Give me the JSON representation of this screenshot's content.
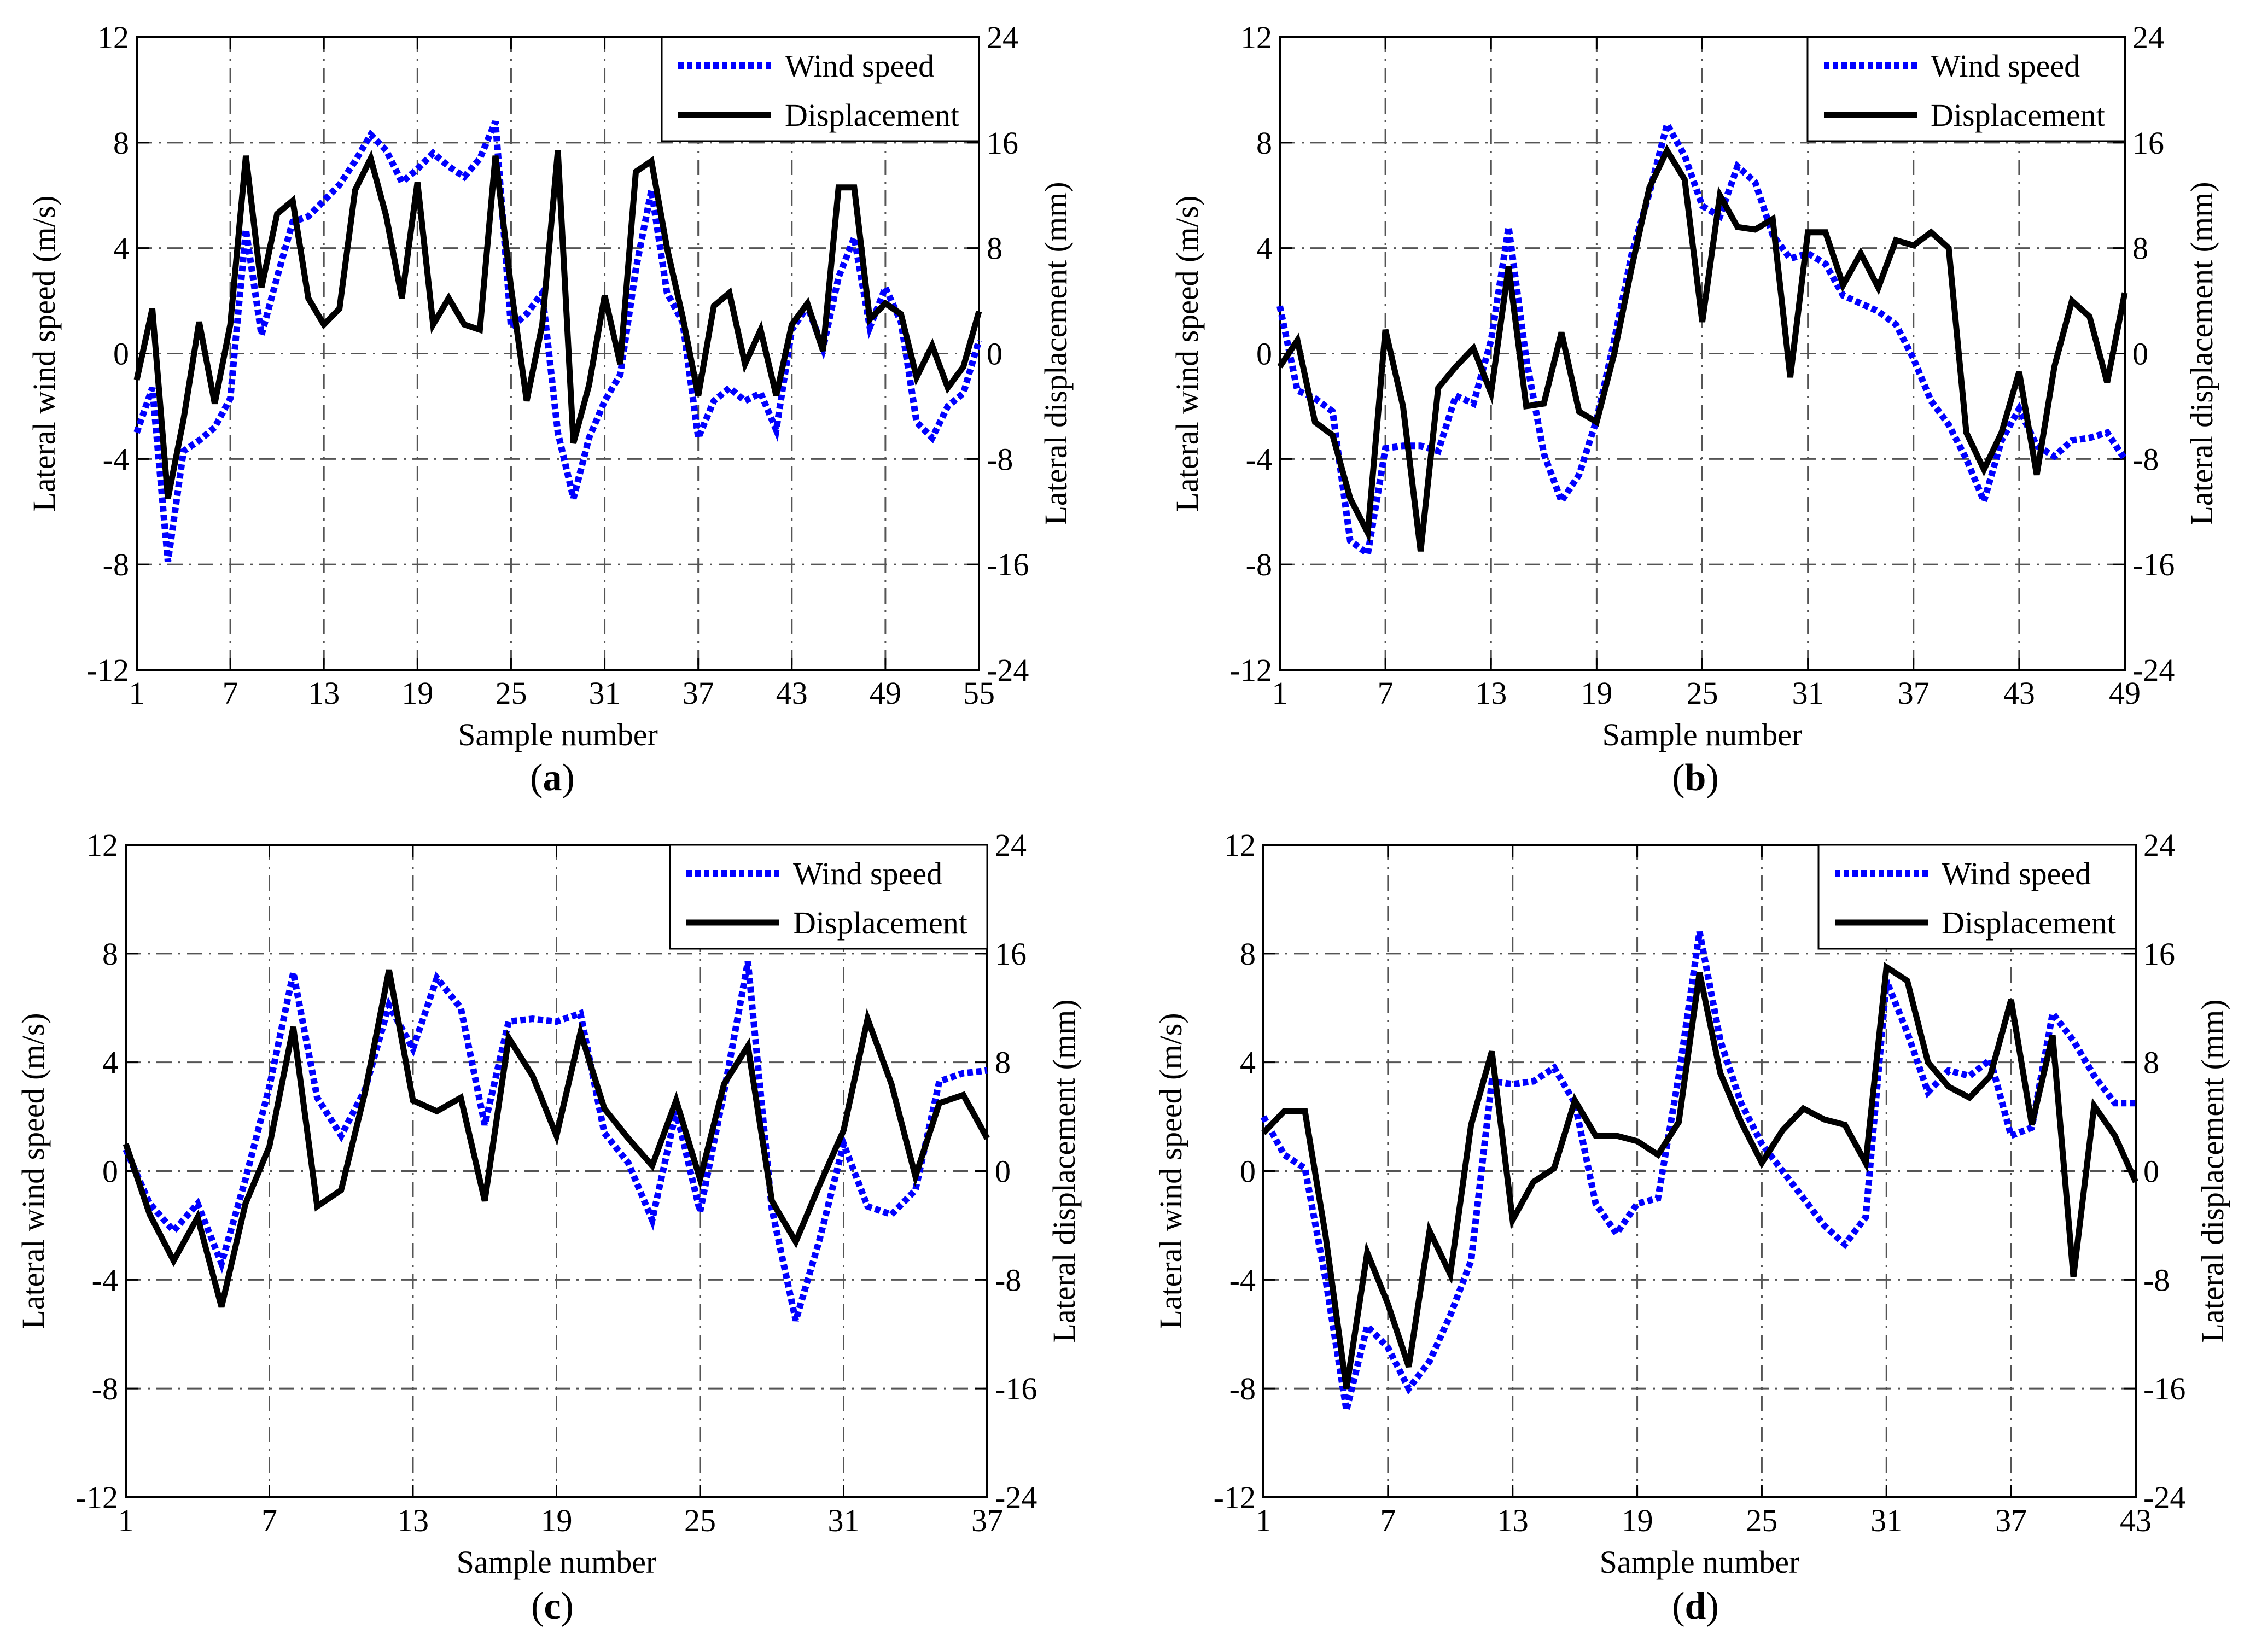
{
  "chart_data": [
    {
      "type": "line",
      "caption": {
        "open": "(",
        "letter": "a",
        "close": ")"
      },
      "xlabel": "Sample number",
      "ylabel": "Lateral wind speed (m/s)",
      "y2label": "Lateral displacement (mm)",
      "xlim": [
        1,
        55
      ],
      "xticks": [
        1,
        7,
        13,
        19,
        25,
        31,
        37,
        43,
        49,
        55
      ],
      "ylim": [
        -12,
        12
      ],
      "yticks": [
        -12,
        -8,
        -4,
        0,
        4,
        8,
        12
      ],
      "y2lim": [
        -24,
        24
      ],
      "y2ticks": [
        -24,
        -16,
        -8,
        0,
        8,
        16,
        24
      ],
      "grid": true,
      "legend_position": "top-right",
      "x": [
        1,
        2,
        3,
        4,
        5,
        6,
        7,
        8,
        9,
        10,
        11,
        12,
        13,
        14,
        15,
        16,
        17,
        18,
        19,
        20,
        21,
        22,
        23,
        24,
        25,
        26,
        27,
        28,
        29,
        30,
        31,
        32,
        33,
        34,
        35,
        36,
        37,
        38,
        39,
        40,
        41,
        42,
        43,
        44,
        45,
        46,
        47,
        48,
        49,
        50,
        51,
        52,
        53,
        54,
        55
      ],
      "series": [
        {
          "name": "Wind speed",
          "axis": "left",
          "color": "#0000ff",
          "style": "dotted",
          "values": [
            -3.0,
            -1.3,
            -7.9,
            -3.7,
            -3.3,
            -2.8,
            -1.7,
            4.7,
            0.7,
            2.9,
            5.0,
            5.2,
            5.8,
            6.4,
            7.3,
            8.3,
            7.7,
            6.5,
            7.0,
            7.6,
            7.1,
            6.7,
            7.4,
            8.8,
            1.0,
            1.5,
            2.3,
            -3.0,
            -5.5,
            -3.2,
            -1.8,
            -0.8,
            3.2,
            6.2,
            2.3,
            1.2,
            -3.2,
            -1.8,
            -1.3,
            -1.8,
            -1.5,
            -2.9,
            0.9,
            1.8,
            0.2,
            2.9,
            4.4,
            1.0,
            2.5,
            1.2,
            -2.6,
            -3.2,
            -2.0,
            -1.5,
            0.5
          ]
        },
        {
          "name": "Displacement",
          "axis": "right",
          "color": "#000000",
          "style": "solid",
          "values": [
            -2.0,
            3.4,
            -11.0,
            -5.0,
            2.4,
            -3.8,
            2.2,
            15.0,
            5.0,
            10.6,
            11.6,
            4.2,
            2.2,
            3.4,
            12.4,
            14.8,
            10.4,
            4.2,
            13.0,
            2.2,
            4.2,
            2.2,
            1.8,
            15.0,
            5.0,
            -3.6,
            2.2,
            15.4,
            -6.8,
            -2.4,
            4.4,
            -0.8,
            13.8,
            14.6,
            8.0,
            2.8,
            -3.2,
            3.6,
            4.6,
            -0.8,
            1.8,
            -3.2,
            2.2,
            3.8,
            0.2,
            12.6,
            12.6,
            2.6,
            3.8,
            3.0,
            -1.8,
            0.6,
            -2.6,
            -1.0,
            3.2
          ]
        }
      ]
    },
    {
      "type": "line",
      "caption": {
        "open": "(",
        "letter": "b",
        "close": ")"
      },
      "xlabel": "Sample number",
      "ylabel": "Lateral wind speed (m/s)",
      "y2label": "Lateral displacement (mm)",
      "xlim": [
        1,
        49
      ],
      "xticks": [
        1,
        7,
        13,
        19,
        25,
        31,
        37,
        43,
        49
      ],
      "ylim": [
        -12,
        12
      ],
      "yticks": [
        -12,
        -8,
        -4,
        0,
        4,
        8,
        12
      ],
      "y2lim": [
        -24,
        24
      ],
      "y2ticks": [
        -24,
        -16,
        -8,
        0,
        8,
        16,
        24
      ],
      "grid": true,
      "legend_position": "top-right",
      "x": [
        1,
        2,
        3,
        4,
        5,
        6,
        7,
        8,
        9,
        10,
        11,
        12,
        13,
        14,
        15,
        16,
        17,
        18,
        19,
        20,
        21,
        22,
        23,
        24,
        25,
        26,
        27,
        28,
        29,
        30,
        31,
        32,
        33,
        34,
        35,
        36,
        37,
        38,
        39,
        40,
        41,
        42,
        43,
        44,
        45,
        46,
        47,
        48,
        49
      ],
      "series": [
        {
          "name": "Wind speed",
          "axis": "left",
          "color": "#0000ff",
          "style": "dotted",
          "values": [
            1.8,
            -1.4,
            -1.7,
            -2.2,
            -7.1,
            -7.6,
            -3.6,
            -3.5,
            -3.5,
            -3.7,
            -1.6,
            -1.9,
            0.5,
            4.8,
            -0.2,
            -3.8,
            -5.6,
            -4.6,
            -2.5,
            0.5,
            3.8,
            6.1,
            8.7,
            7.5,
            5.6,
            5.2,
            7.1,
            6.5,
            4.5,
            3.6,
            3.8,
            3.4,
            2.2,
            1.9,
            1.6,
            1.1,
            -0.2,
            -1.8,
            -2.7,
            -4.0,
            -5.6,
            -3.3,
            -2.1,
            -3.5,
            -3.9,
            -3.3,
            -3.2,
            -3.0,
            -4.0
          ]
        },
        {
          "name": "Displacement",
          "axis": "right",
          "color": "#000000",
          "style": "solid",
          "values": [
            -1.0,
            1.0,
            -5.2,
            -6.2,
            -11.0,
            -13.6,
            1.8,
            -4.0,
            -15.0,
            -2.6,
            -1.0,
            0.4,
            -3.0,
            6.6,
            -4.0,
            -3.8,
            1.6,
            -4.4,
            -5.2,
            0.0,
            6.6,
            12.6,
            15.4,
            13.2,
            2.4,
            12.0,
            9.6,
            9.4,
            10.2,
            -1.8,
            9.2,
            9.2,
            5.2,
            7.6,
            5.0,
            8.6,
            8.2,
            9.2,
            8.0,
            -6.0,
            -8.8,
            -6.0,
            -1.4,
            -9.2,
            -1.0,
            4.0,
            2.8,
            -2.2,
            4.6
          ]
        }
      ]
    },
    {
      "type": "line",
      "caption": {
        "open": "(",
        "letter": "c",
        "close": ")"
      },
      "xlabel": "Sample number",
      "ylabel": "Lateral wind speed (m/s)",
      "y2label": "Lateral displacement (mm)",
      "xlim": [
        1,
        37
      ],
      "xticks": [
        1,
        7,
        13,
        19,
        25,
        31,
        37
      ],
      "ylim": [
        -12,
        12
      ],
      "yticks": [
        -12,
        -8,
        -4,
        0,
        4,
        8,
        12
      ],
      "y2lim": [
        -24,
        24
      ],
      "y2ticks": [
        -24,
        -16,
        -8,
        0,
        8,
        16,
        24
      ],
      "grid": true,
      "legend_position": "top-right",
      "x": [
        1,
        2,
        3,
        4,
        5,
        6,
        7,
        8,
        9,
        10,
        11,
        12,
        13,
        14,
        15,
        16,
        17,
        18,
        19,
        20,
        21,
        22,
        23,
        24,
        25,
        26,
        27,
        28,
        29,
        30,
        31,
        32,
        33,
        34,
        35,
        36,
        37
      ],
      "series": [
        {
          "name": "Wind speed",
          "axis": "left",
          "color": "#0000ff",
          "style": "dotted",
          "values": [
            0.8,
            -1.2,
            -2.2,
            -1.2,
            -3.4,
            -0.3,
            3.1,
            7.3,
            2.7,
            1.3,
            3.0,
            6.1,
            4.5,
            7.1,
            6.0,
            1.7,
            5.5,
            5.6,
            5.5,
            5.8,
            1.4,
            0.3,
            -1.8,
            2.2,
            -1.5,
            2.9,
            7.7,
            -1.4,
            -5.5,
            -2.5,
            1.0,
            -1.3,
            -1.6,
            -0.7,
            3.3,
            3.6,
            3.7
          ]
        },
        {
          "name": "Displacement",
          "axis": "right",
          "color": "#000000",
          "style": "solid",
          "values": [
            2.0,
            -3.2,
            -6.6,
            -3.4,
            -10.0,
            -2.4,
            1.8,
            10.6,
            -2.6,
            -1.4,
            5.8,
            14.8,
            5.2,
            4.4,
            5.4,
            -2.2,
            9.8,
            7.0,
            2.6,
            10.2,
            4.6,
            2.4,
            0.4,
            5.2,
            -0.6,
            6.4,
            9.2,
            -2.2,
            -5.2,
            -1.0,
            3.0,
            11.2,
            6.4,
            -0.4,
            5.0,
            5.6,
            2.4
          ]
        }
      ]
    },
    {
      "type": "line",
      "caption": {
        "open": "(",
        "letter": "d",
        "close": ")"
      },
      "xlabel": "Sample number",
      "ylabel": "Lateral wind speed (m/s)",
      "y2label": "Lateral displacement (mm)",
      "xlim": [
        1,
        43
      ],
      "xticks": [
        1,
        7,
        13,
        19,
        25,
        31,
        37,
        43
      ],
      "ylim": [
        -12,
        12
      ],
      "yticks": [
        -12,
        -8,
        -4,
        0,
        4,
        8,
        12
      ],
      "y2lim": [
        -24,
        24
      ],
      "y2ticks": [
        -24,
        -16,
        -8,
        0,
        8,
        16,
        24
      ],
      "grid": true,
      "legend_position": "top-right",
      "x": [
        1,
        2,
        3,
        4,
        5,
        6,
        7,
        8,
        9,
        10,
        11,
        12,
        13,
        14,
        15,
        16,
        17,
        18,
        19,
        20,
        21,
        22,
        23,
        24,
        25,
        26,
        27,
        28,
        29,
        30,
        31,
        32,
        33,
        34,
        35,
        36,
        37,
        38,
        39,
        40,
        41,
        42,
        43
      ],
      "series": [
        {
          "name": "Wind speed",
          "axis": "left",
          "color": "#0000ff",
          "style": "dotted",
          "values": [
            2.0,
            0.6,
            0.1,
            -4.0,
            -8.8,
            -5.7,
            -6.5,
            -8.0,
            -7.0,
            -5.3,
            -3.3,
            3.3,
            3.2,
            3.3,
            3.8,
            2.5,
            -1.2,
            -2.3,
            -1.2,
            -1.0,
            3.5,
            8.8,
            4.8,
            2.5,
            1.0,
            0.0,
            -1.0,
            -2.0,
            -2.7,
            -1.7,
            7.0,
            5.1,
            2.9,
            3.7,
            3.5,
            4.1,
            1.3,
            1.6,
            5.8,
            4.8,
            3.5,
            2.5,
            2.5
          ]
        },
        {
          "name": "Displacement",
          "axis": "right",
          "color": "#000000",
          "style": "solid",
          "values": [
            2.8,
            4.4,
            4.4,
            -4.8,
            -16.0,
            -6.0,
            -9.8,
            -14.4,
            -4.4,
            -7.6,
            3.4,
            8.8,
            -3.6,
            -0.8,
            0.2,
            5.2,
            2.6,
            2.6,
            2.2,
            1.2,
            3.6,
            14.6,
            7.2,
            3.6,
            0.6,
            3.0,
            4.6,
            3.8,
            3.4,
            0.6,
            15.0,
            14.0,
            8.0,
            6.2,
            5.4,
            7.0,
            12.6,
            3.4,
            10.0,
            -7.8,
            4.8,
            2.6,
            -0.8
          ]
        }
      ]
    }
  ]
}
